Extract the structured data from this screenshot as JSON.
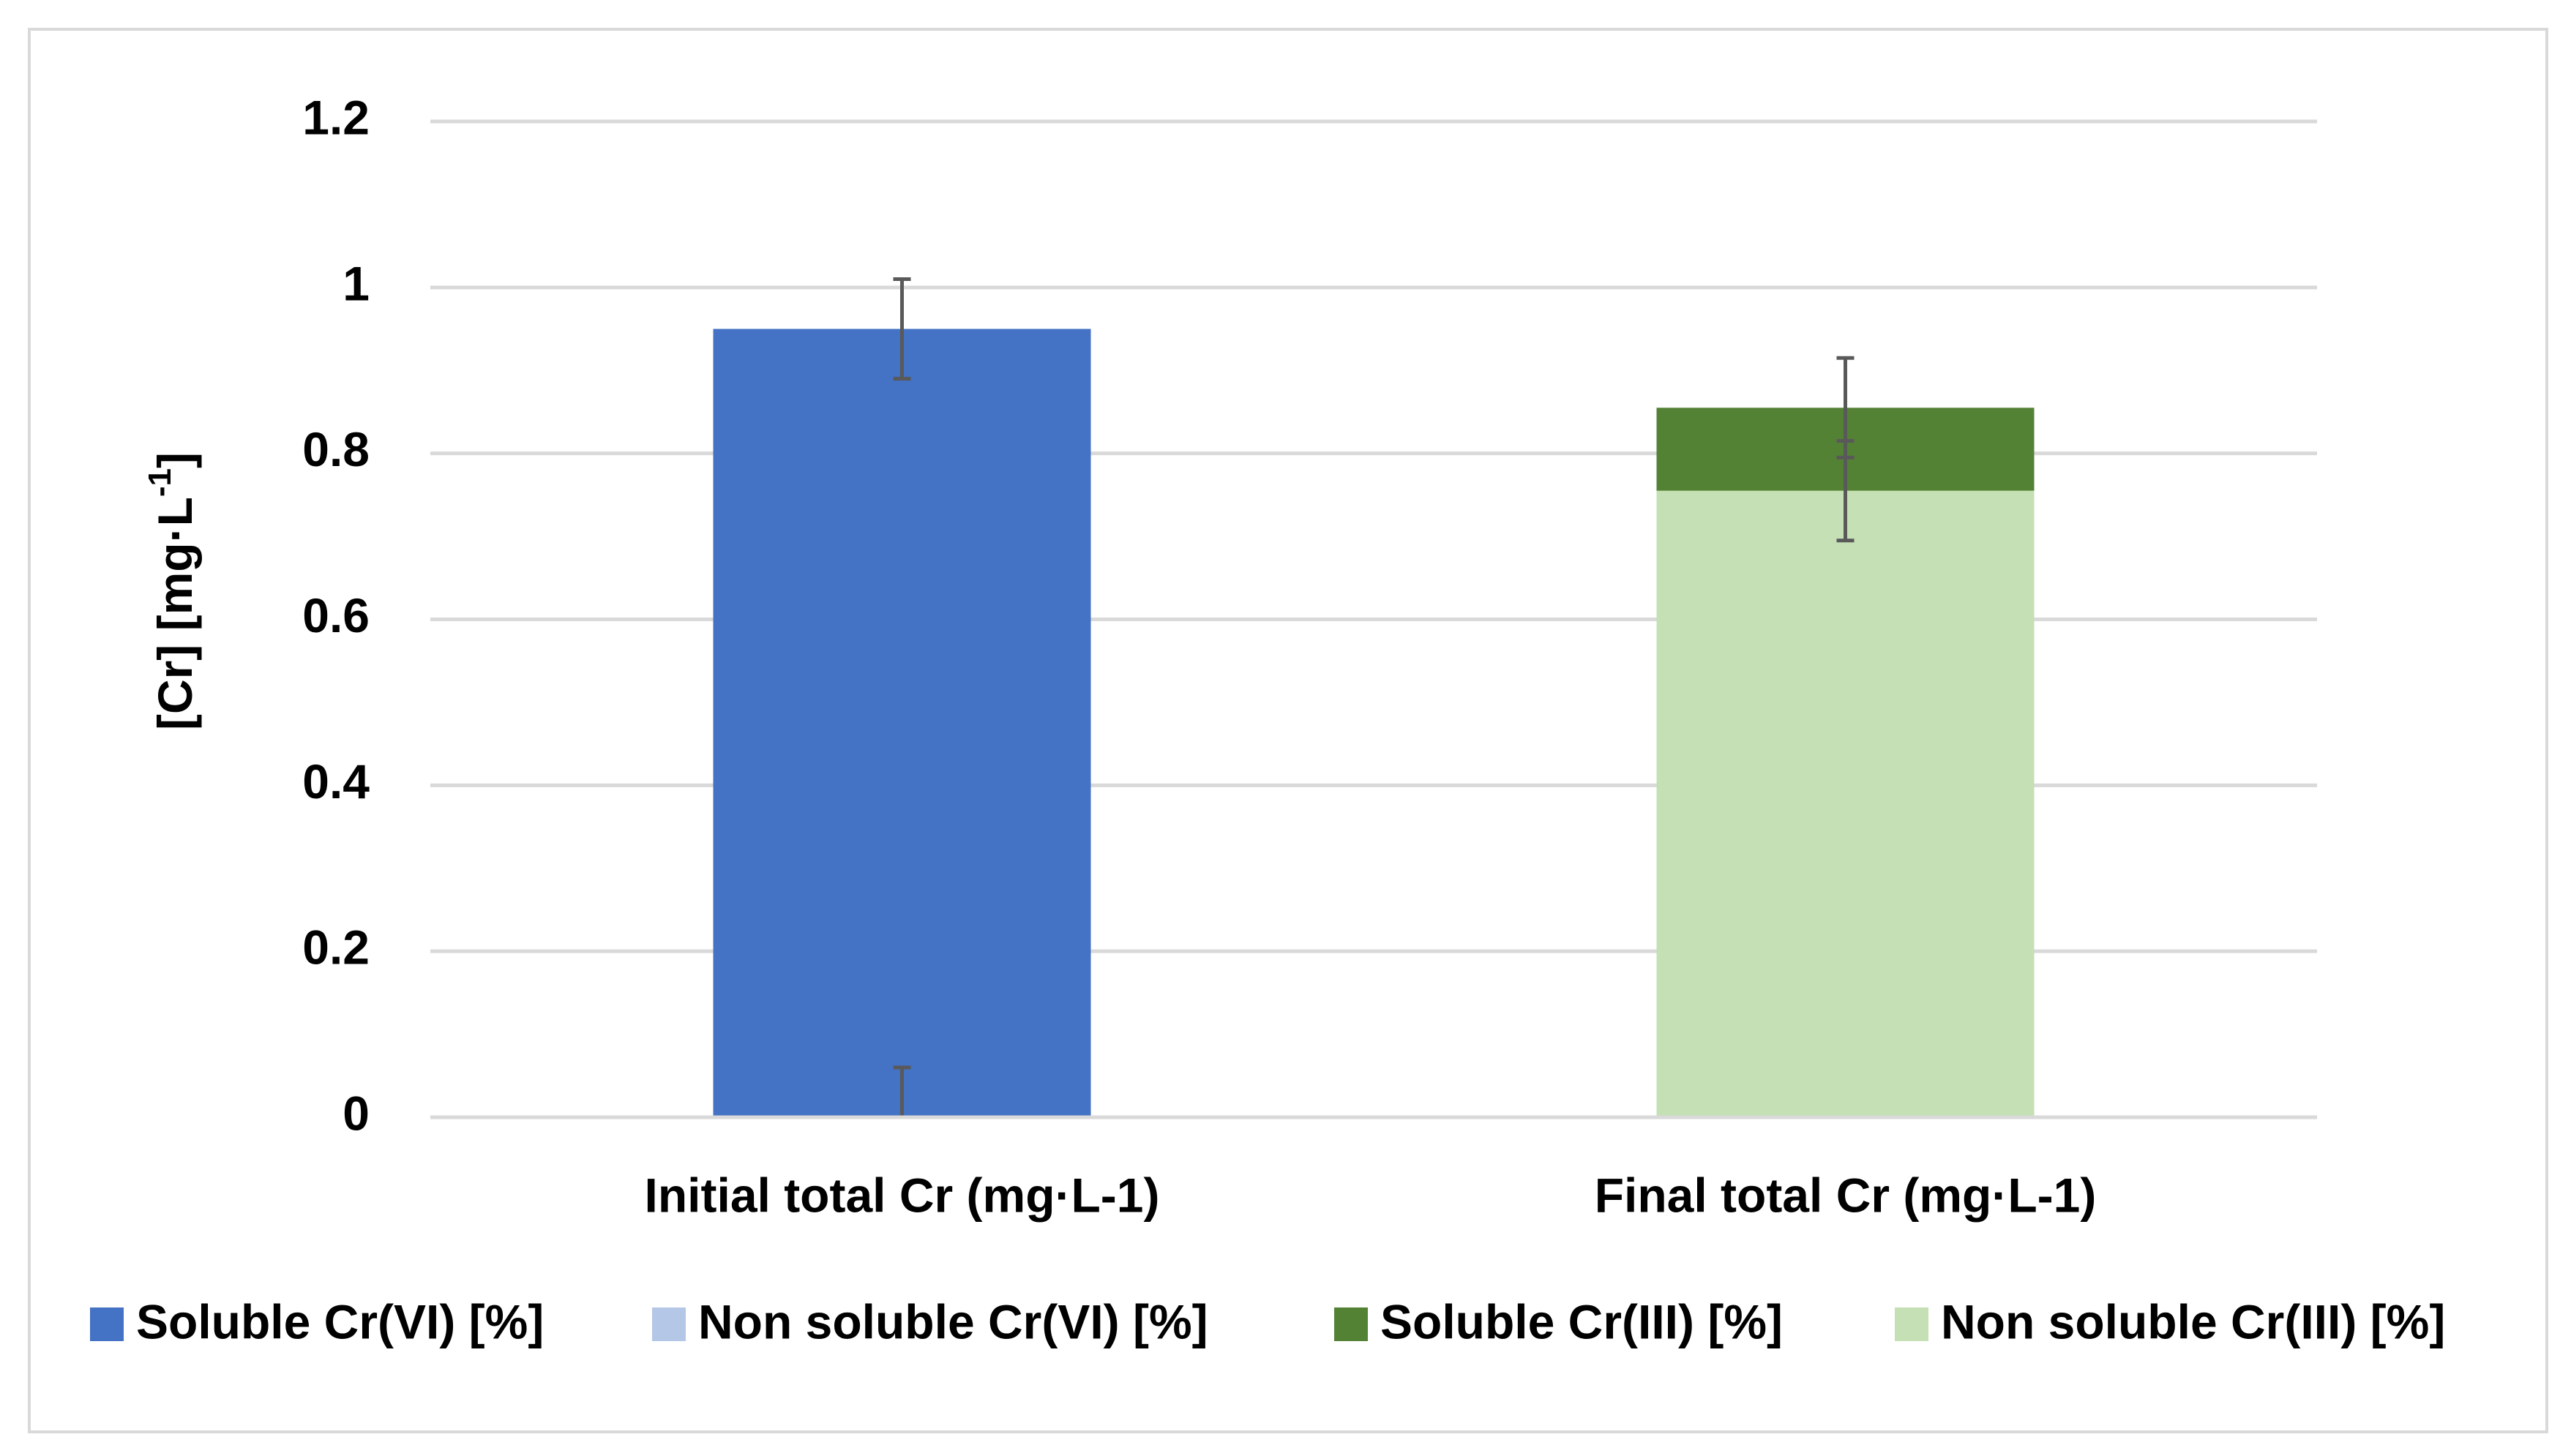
{
  "chart_data": {
    "type": "stacked_bar",
    "y_label_parts": [
      "[Cr] [mg·L",
      "-1",
      "]"
    ],
    "categories": [
      "Initial total Cr (mg·L-1)",
      "Final total Cr (mg·L-1)"
    ],
    "series": [
      {
        "name": "Soluble Cr(VI) [%]",
        "color": "#4472c4",
        "values": [
          0.95,
          0
        ],
        "errors": [
          0.06,
          null
        ]
      },
      {
        "name": "Non soluble Cr(VI) [%]",
        "color": "#b4c7e7",
        "values": [
          0,
          0
        ],
        "errors": [
          null,
          null
        ]
      },
      {
        "name": "Soluble Cr(III) [%]",
        "color": "#548235",
        "values": [
          0,
          0.1
        ],
        "errors": [
          null,
          0.06
        ]
      },
      {
        "name": "Non soluble Cr(III) [%]",
        "color": "#c5e0b4",
        "values": [
          0,
          0.755
        ],
        "errors": [
          0.06,
          0.06
        ]
      }
    ],
    "ylim": [
      0,
      1.2
    ],
    "yticks": [
      0,
      0.2,
      0.4,
      0.6,
      0.8,
      1,
      1.2
    ],
    "grid": true,
    "legend": "bottom"
  }
}
